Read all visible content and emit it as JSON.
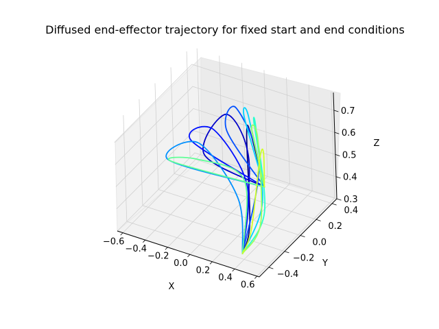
{
  "chart_data": {
    "type": "line3d",
    "title": "Diffused end-effector trajectory for fixed start and end conditions",
    "xlabel": "X",
    "ylabel": "Y",
    "zlabel": "Z",
    "xlim": [
      -0.65,
      0.62
    ],
    "ylim": [
      -0.52,
      0.46
    ],
    "zlim": [
      0.3,
      0.78
    ],
    "xticks": [
      "−0.6",
      "−0.4",
      "−0.2",
      "0.0",
      "0.2",
      "0.4",
      "0.6"
    ],
    "yticks": [
      "−0.4",
      "−0.2",
      "0.0",
      "0.2",
      "0.4"
    ],
    "zticks": [
      "0.3",
      "0.4",
      "0.5",
      "0.6",
      "0.7"
    ],
    "colormap": "jet",
    "start_point": {
      "x": 0.05,
      "y": 0.35,
      "z": 0.3
    },
    "end_point": {
      "x": 0.35,
      "y": -0.35,
      "z": 0.3
    },
    "series": [
      {
        "color": "#00007f",
        "waypoints": [
          [
            0.05,
            0.35,
            0.3
          ],
          [
            0.05,
            0.2,
            0.6
          ],
          [
            0.2,
            -0.05,
            0.7
          ],
          [
            0.35,
            -0.25,
            0.4
          ],
          [
            0.35,
            -0.35,
            0.3
          ]
        ]
      },
      {
        "color": "#0000c8",
        "waypoints": [
          [
            0.05,
            0.35,
            0.3
          ],
          [
            -0.3,
            0.1,
            0.48
          ],
          [
            -0.05,
            0.05,
            0.72
          ],
          [
            0.25,
            -0.1,
            0.62
          ],
          [
            0.35,
            -0.35,
            0.3
          ]
        ]
      },
      {
        "color": "#0010ff",
        "waypoints": [
          [
            0.05,
            0.35,
            0.3
          ],
          [
            -0.45,
            0.15,
            0.5
          ],
          [
            -0.1,
            -0.05,
            0.68
          ],
          [
            0.3,
            -0.2,
            0.55
          ],
          [
            0.35,
            -0.35,
            0.3
          ]
        ]
      },
      {
        "color": "#0050ff",
        "waypoints": [
          [
            0.05,
            0.35,
            0.3
          ],
          [
            -0.2,
            0.25,
            0.55
          ],
          [
            0.0,
            0.1,
            0.74
          ],
          [
            0.3,
            -0.05,
            0.58
          ],
          [
            0.35,
            -0.35,
            0.3
          ]
        ]
      },
      {
        "color": "#0090ff",
        "waypoints": [
          [
            0.05,
            0.35,
            0.3
          ],
          [
            -0.55,
            0.0,
            0.45
          ],
          [
            -0.2,
            -0.1,
            0.62
          ],
          [
            0.25,
            -0.25,
            0.5
          ],
          [
            0.35,
            -0.35,
            0.3
          ]
        ]
      },
      {
        "color": "#00d4ff",
        "waypoints": [
          [
            0.05,
            0.35,
            0.3
          ],
          [
            0.0,
            0.2,
            0.66
          ],
          [
            0.15,
            0.05,
            0.74
          ],
          [
            0.4,
            -0.15,
            0.48
          ],
          [
            0.35,
            -0.35,
            0.3
          ]
        ]
      },
      {
        "color": "#29ffce",
        "waypoints": [
          [
            0.05,
            0.35,
            0.3
          ],
          [
            0.05,
            0.25,
            0.62
          ],
          [
            0.25,
            0.0,
            0.72
          ],
          [
            0.45,
            -0.2,
            0.45
          ],
          [
            0.35,
            -0.35,
            0.3
          ]
        ]
      },
      {
        "color": "#60ff97",
        "waypoints": [
          [
            0.05,
            0.35,
            0.3
          ],
          [
            -0.6,
            0.1,
            0.4
          ],
          [
            -0.25,
            -0.05,
            0.52
          ],
          [
            0.2,
            -0.1,
            0.52
          ],
          [
            0.35,
            -0.35,
            0.3
          ]
        ]
      },
      {
        "color": "#9aff5d",
        "waypoints": [
          [
            0.05,
            0.35,
            0.3
          ],
          [
            0.1,
            0.15,
            0.64
          ],
          [
            0.3,
            -0.05,
            0.7
          ],
          [
            0.45,
            -0.25,
            0.42
          ],
          [
            0.35,
            -0.35,
            0.3
          ]
        ]
      },
      {
        "color": "#d1ff26",
        "waypoints": [
          [
            0.05,
            0.35,
            0.3
          ],
          [
            0.2,
            0.15,
            0.55
          ],
          [
            0.35,
            -0.1,
            0.64
          ],
          [
            0.4,
            -0.3,
            0.4
          ],
          [
            0.35,
            -0.35,
            0.3
          ]
        ]
      }
    ]
  }
}
